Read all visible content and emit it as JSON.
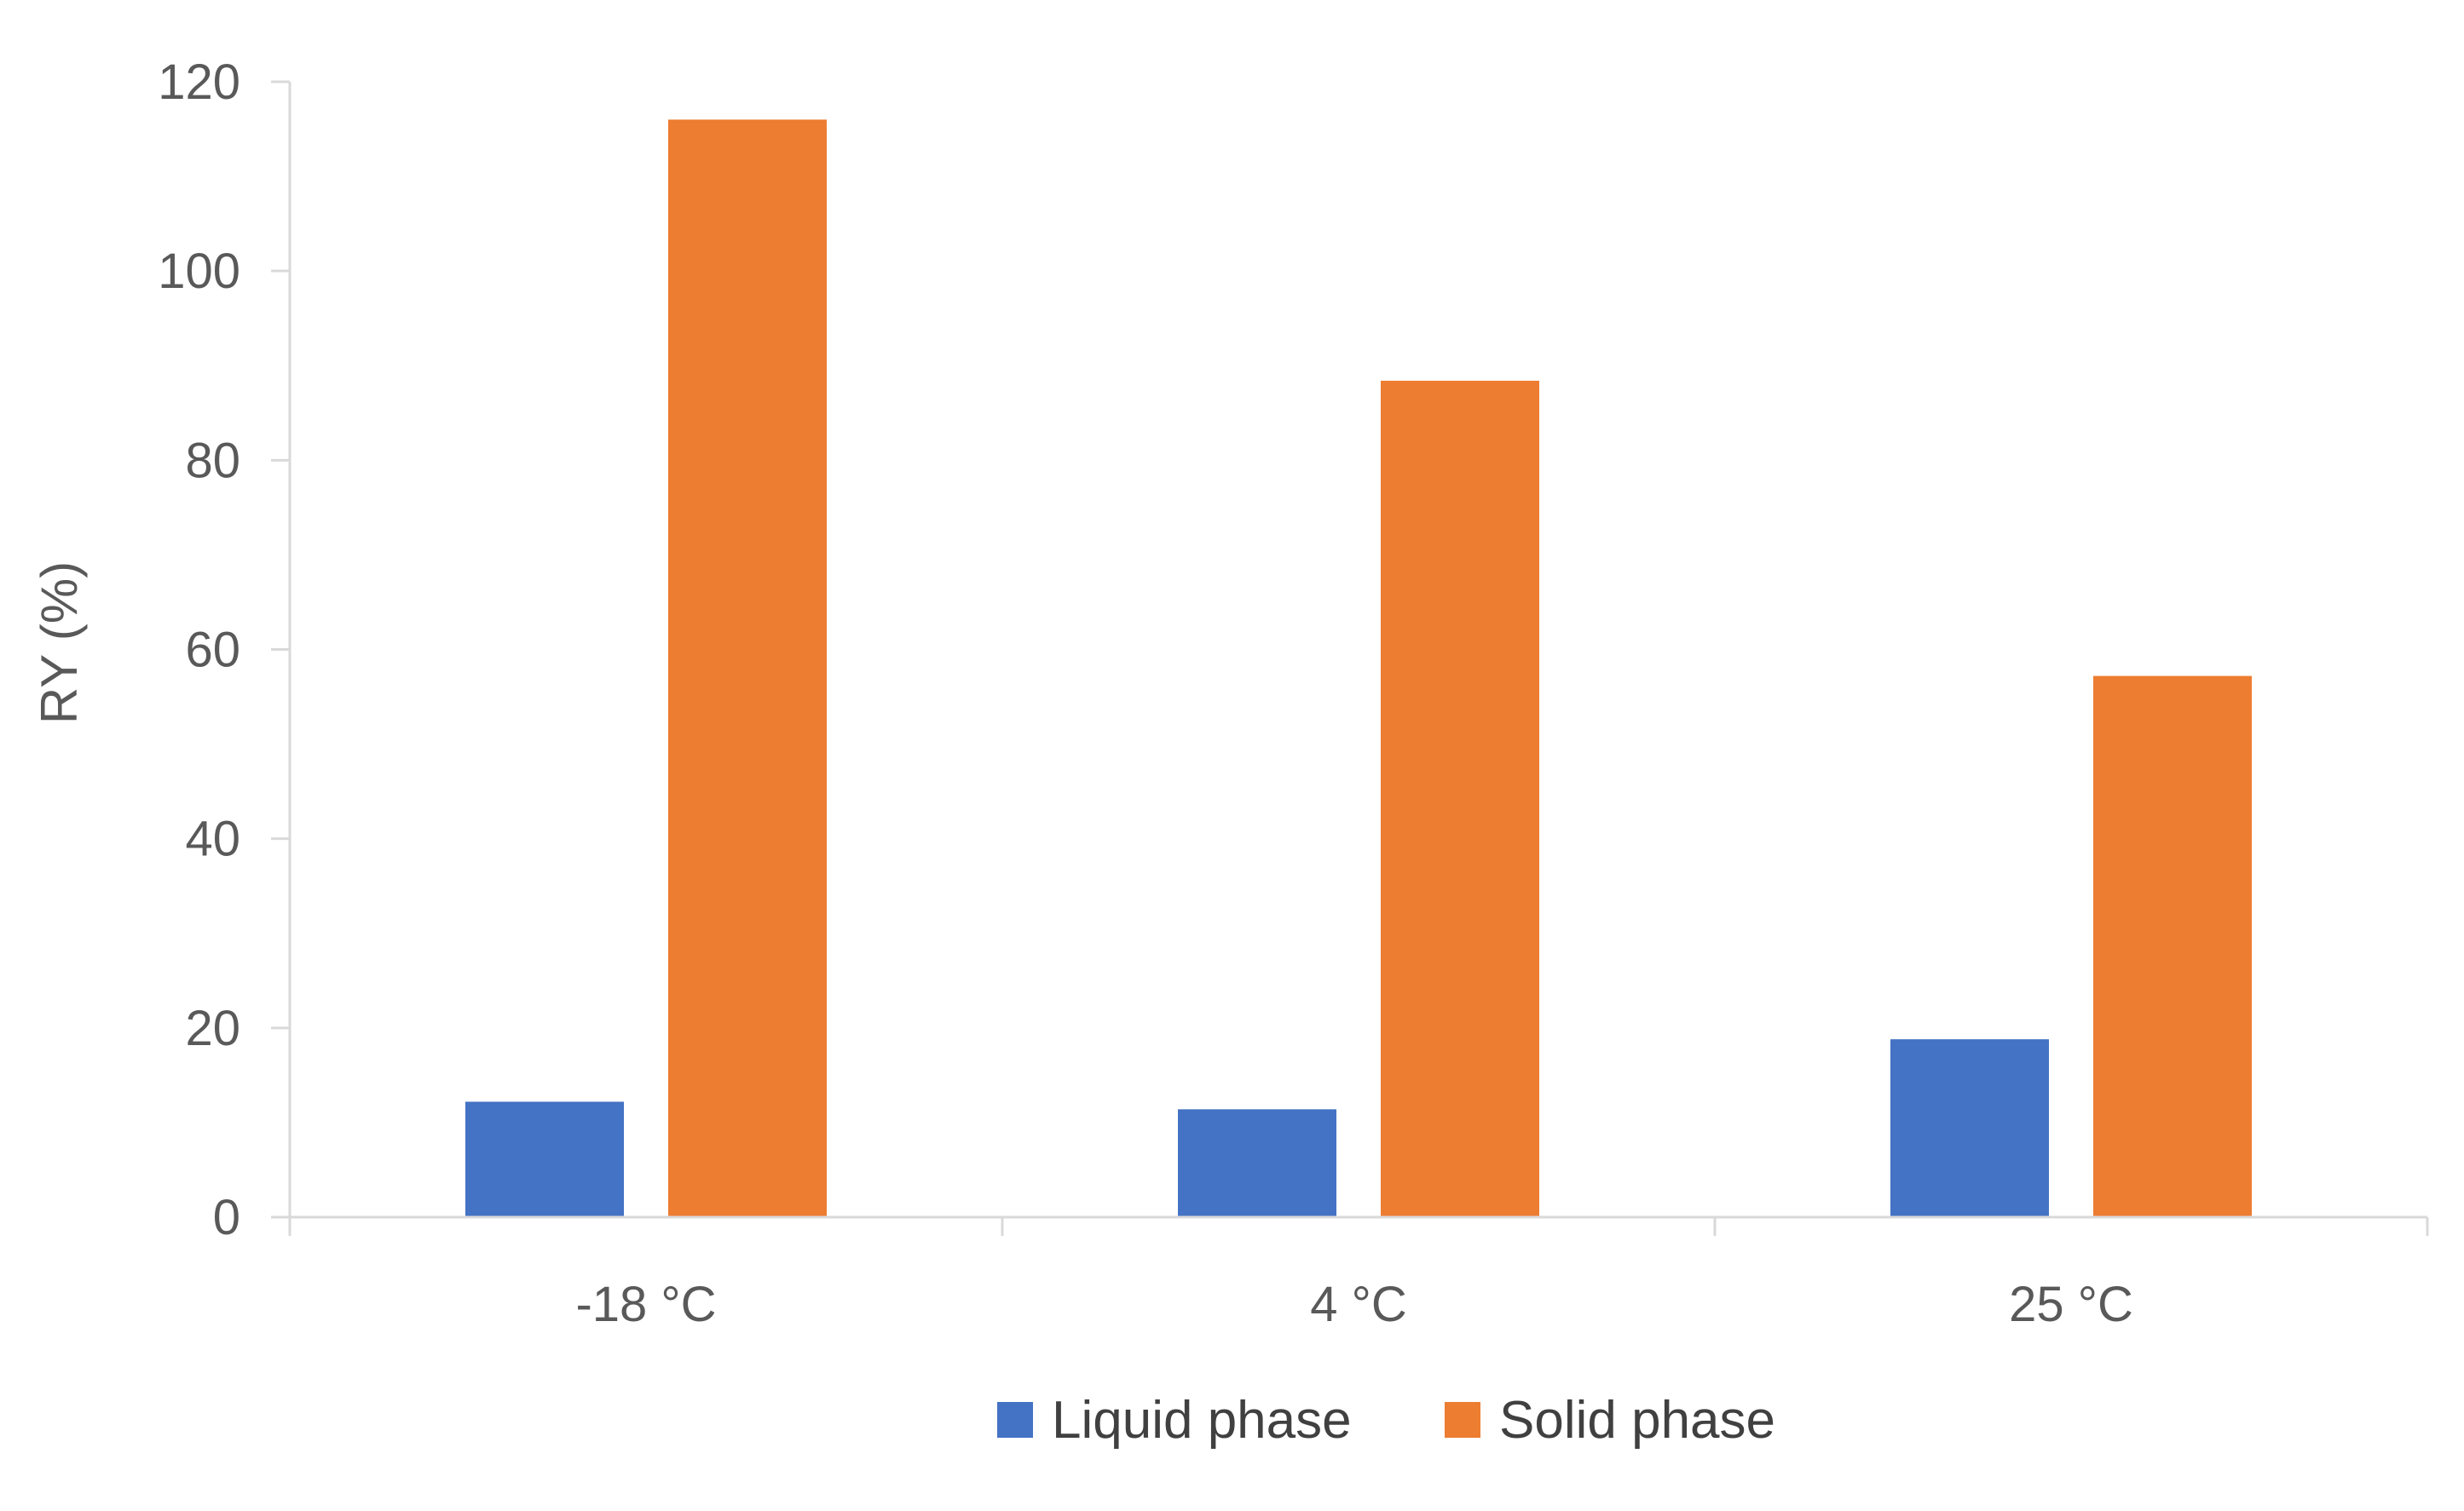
{
  "chart_data": {
    "type": "bar",
    "title": "",
    "xlabel": "",
    "ylabel": "RY (%)",
    "ylim": [
      0,
      120
    ],
    "yticks": [
      0,
      20,
      40,
      60,
      80,
      100,
      120
    ],
    "categories": [
      "-18 °C",
      "4 °C",
      "25 °C"
    ],
    "series": [
      {
        "name": "Liquid phase",
        "color": "#4472C4",
        "values": [
          12.2,
          11.4,
          18.8
        ]
      },
      {
        "name": "Solid phase",
        "color": "#ED7D31",
        "values": [
          116,
          88.4,
          57.2
        ]
      }
    ],
    "grid": false,
    "legend_position": "bottom"
  }
}
